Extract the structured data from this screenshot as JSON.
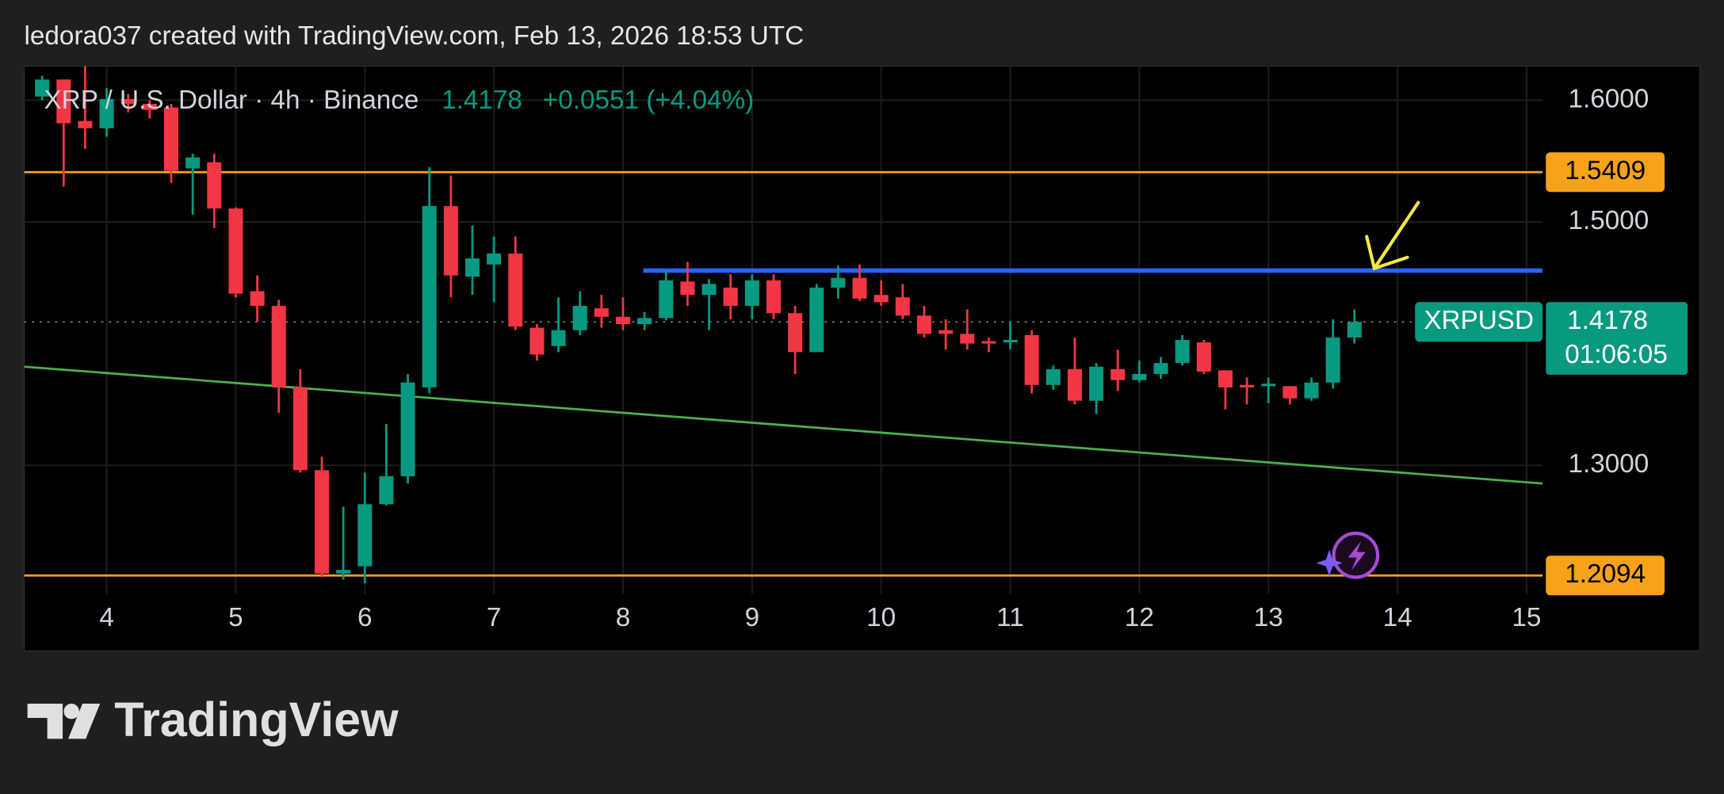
{
  "header": {
    "text": "ledora037 created with TradingView.com, Feb 13, 2026 18:53 UTC"
  },
  "chart_data": {
    "type": "candlestick",
    "title": "XRP / U.S. Dollar · 4h · Binance",
    "price": 1.4178,
    "change": "+0.0551 (+4.04%)",
    "x": [
      3.5,
      3.6667,
      3.8333,
      4,
      4.1667,
      4.3333,
      4.5,
      4.6667,
      4.8333,
      5,
      5.1667,
      5.3333,
      5.5,
      5.6667,
      5.8333,
      6,
      6.1667,
      6.3333,
      6.5,
      6.6667,
      6.8333,
      7,
      7.1667,
      7.3333,
      7.5,
      7.6667,
      7.8333,
      8,
      8.1667,
      8.3333,
      8.5,
      8.6667,
      8.8333,
      9,
      9.1667,
      9.3333,
      9.5,
      9.6667,
      9.8333,
      10,
      10.1667,
      10.3333,
      10.5,
      10.6667,
      10.8333,
      11,
      11.1667,
      11.3333,
      11.5,
      11.6667,
      11.8333,
      12,
      12.1667,
      12.3333,
      12.5,
      12.6667,
      12.8333,
      13,
      13.1667,
      13.3333,
      13.5,
      13.6667
    ],
    "open": [
      1.603,
      1.617,
      1.583,
      1.577,
      1.601,
      1.597,
      1.594,
      1.544,
      1.549,
      1.511,
      1.443,
      1.431,
      1.364,
      1.296,
      1.211,
      1.217,
      1.268,
      1.291,
      1.364,
      1.513,
      1.455,
      1.465,
      1.474,
      1.413,
      1.398,
      1.411,
      1.429,
      1.422,
      1.416,
      1.421,
      1.451,
      1.44,
      1.446,
      1.431,
      1.452,
      1.425,
      1.393,
      1.446,
      1.454,
      1.44,
      1.438,
      1.423,
      1.411,
      1.408,
      1.402,
      1.401,
      1.407,
      1.366,
      1.379,
      1.353,
      1.379,
      1.37,
      1.375,
      1.384,
      1.401,
      1.378,
      1.366,
      1.365,
      1.365,
      1.355,
      1.368,
      1.405
    ],
    "high": [
      1.62,
      1.617,
      1.628,
      1.61,
      1.605,
      1.6,
      1.597,
      1.556,
      1.556,
      1.512,
      1.456,
      1.436,
      1.379,
      1.307,
      1.266,
      1.294,
      1.334,
      1.375,
      1.545,
      1.538,
      1.497,
      1.488,
      1.488,
      1.416,
      1.438,
      1.443,
      1.44,
      1.438,
      1.426,
      1.461,
      1.467,
      1.453,
      1.457,
      1.457,
      1.457,
      1.431,
      1.449,
      1.464,
      1.465,
      1.452,
      1.449,
      1.431,
      1.42,
      1.428,
      1.405,
      1.418,
      1.411,
      1.382,
      1.405,
      1.384,
      1.395,
      1.386,
      1.389,
      1.407,
      1.403,
      1.378,
      1.372,
      1.372,
      1.365,
      1.372,
      1.42,
      1.428
    ],
    "low": [
      1.6,
      1.529,
      1.56,
      1.57,
      1.59,
      1.585,
      1.532,
      1.506,
      1.495,
      1.438,
      1.418,
      1.343,
      1.294,
      1.208,
      1.206,
      1.203,
      1.267,
      1.285,
      1.359,
      1.438,
      1.44,
      1.434,
      1.411,
      1.386,
      1.393,
      1.407,
      1.413,
      1.411,
      1.411,
      1.419,
      1.431,
      1.411,
      1.42,
      1.42,
      1.42,
      1.375,
      1.393,
      1.437,
      1.435,
      1.431,
      1.42,
      1.405,
      1.395,
      1.395,
      1.393,
      1.395,
      1.359,
      1.362,
      1.35,
      1.342,
      1.361,
      1.368,
      1.371,
      1.382,
      1.375,
      1.346,
      1.35,
      1.351,
      1.35,
      1.353,
      1.363,
      1.4
    ],
    "close": [
      1.617,
      1.581,
      1.577,
      1.601,
      1.597,
      1.592,
      1.542,
      1.553,
      1.511,
      1.441,
      1.431,
      1.364,
      1.296,
      1.211,
      1.214,
      1.268,
      1.291,
      1.368,
      1.513,
      1.456,
      1.47,
      1.474,
      1.414,
      1.391,
      1.411,
      1.431,
      1.422,
      1.416,
      1.421,
      1.452,
      1.44,
      1.449,
      1.431,
      1.452,
      1.425,
      1.393,
      1.446,
      1.454,
      1.437,
      1.434,
      1.423,
      1.408,
      1.408,
      1.4,
      1.4,
      1.403,
      1.366,
      1.379,
      1.353,
      1.381,
      1.37,
      1.375,
      1.384,
      1.403,
      1.377,
      1.364,
      1.364,
      1.367,
      1.355,
      1.368,
      1.405,
      1.4178
    ],
    "up_color": "#089981",
    "down_color": "#f23645",
    "xlim": [
      3.361,
      15.124
    ],
    "xticks": [
      4,
      5,
      6,
      7,
      8,
      9,
      10,
      11,
      12,
      13,
      14,
      15
    ],
    "ylim": [
      1.1944,
      1.628
    ],
    "yticks": [
      {
        "value": 1.6,
        "label": "1.6000"
      },
      {
        "value": 1.5,
        "label": "1.5000"
      },
      {
        "value": 1.3,
        "label": "1.3000"
      }
    ],
    "grid": true,
    "levels": [
      {
        "value": 1.5409,
        "color": "#f7a21b"
      },
      {
        "value": 1.2094,
        "color": "#f7a21b"
      }
    ],
    "lines": [
      {
        "x": [
          8.157,
          15.124
        ],
        "y": [
          1.46,
          1.46
        ],
        "color": "#2962ff"
      },
      {
        "x": [
          3.361,
          15.124
        ],
        "y": [
          1.381,
          1.285
        ],
        "color": "#4caf50"
      }
    ],
    "last_price": {
      "symbol": "XRPUSD",
      "countdown": "01:06:05"
    }
  },
  "footer": {
    "logo": "TradingView"
  }
}
